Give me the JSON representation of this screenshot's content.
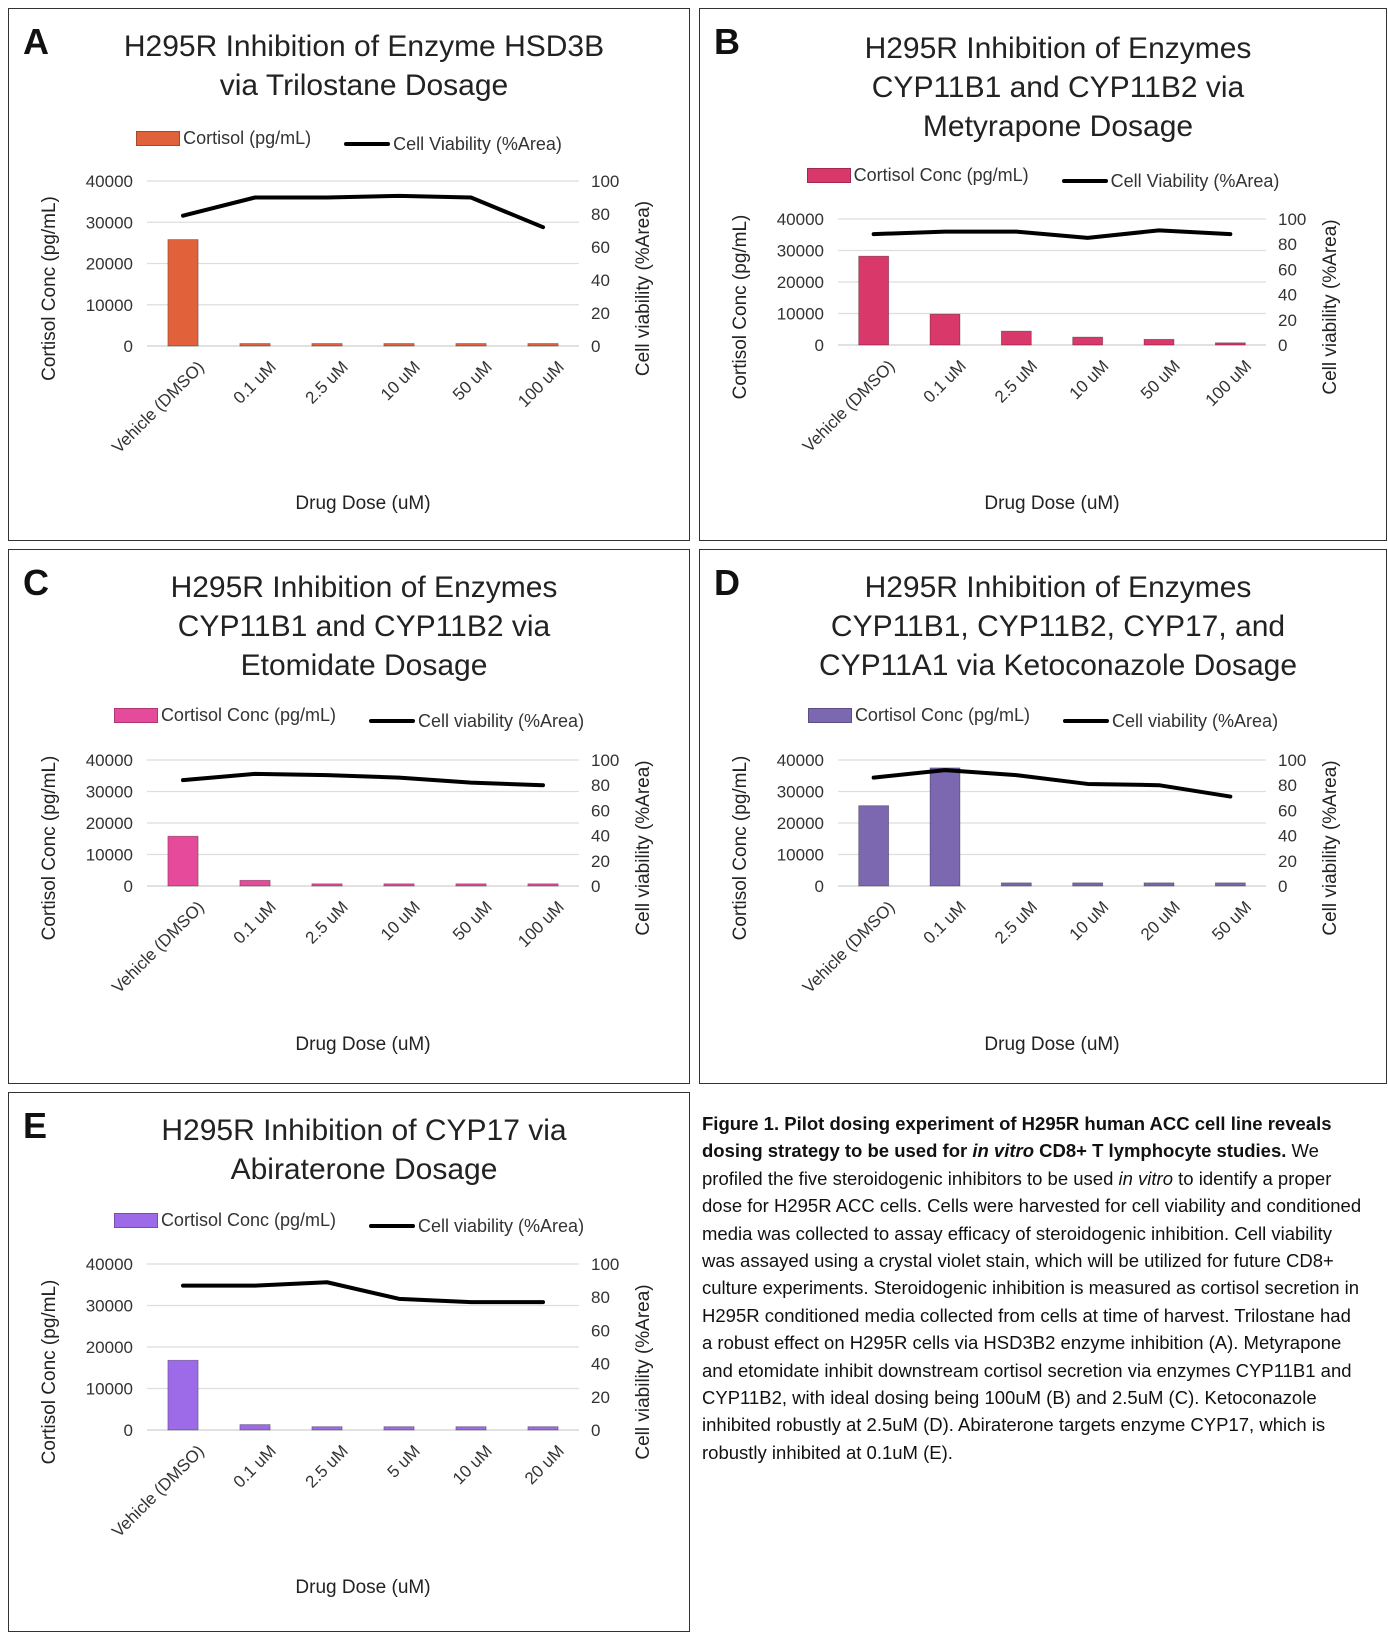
{
  "colors": {
    "A": "#e0613a",
    "B": "#d9386a",
    "C": "#e64a9a",
    "D": "#7c68b1",
    "E": "#9d6ae8",
    "line": "#000000"
  },
  "common": {
    "xlabel": "Drug Dose (uM)",
    "ylabel_left": "Cortisol Conc (pg/mL)"
  },
  "chart_data": [
    {
      "id": "A",
      "type": "bar+line",
      "title": "H295R Inhibition of Enzyme HSD3B via Trilostane Dosage",
      "title_lines": [
        "H295R Inhibition of Enzyme HSD3B",
        "via Trilostane Dosage"
      ],
      "legend": [
        "Cortisol (pg/mL)",
        "Cell Viability (%Area)"
      ],
      "categories": [
        "Vehicle (DMSO)",
        "0.1 uM",
        "2.5 uM",
        "10 uM",
        "50 uM",
        "100 uM"
      ],
      "series": [
        {
          "name": "Cortisol (pg/mL)",
          "kind": "bar",
          "axis": "left",
          "values": [
            25800,
            600,
            600,
            600,
            600,
            600
          ]
        },
        {
          "name": "Cell Viability (%Area)",
          "kind": "line",
          "axis": "right",
          "values": [
            79,
            90,
            90,
            91,
            90,
            72
          ]
        }
      ],
      "xlabel": "Drug Dose (uM)",
      "ylabel": "Cortisol Conc (pg/mL)",
      "y2label": "Cell viability (%Area)",
      "ylim": [
        0,
        40000
      ],
      "yticks": [
        "0",
        "10000",
        "20000",
        "30000",
        "40000"
      ],
      "y2lim": [
        0,
        100
      ],
      "y2ticks": [
        "0",
        "20",
        "40",
        "60",
        "80",
        "100"
      ]
    },
    {
      "id": "B",
      "type": "bar+line",
      "title": "H295R Inhibition of Enzymes CYP11B1 and CYP11B2 via Metyrapone Dosage",
      "title_lines": [
        "H295R Inhibition of Enzymes",
        "CYP11B1 and CYP11B2 via",
        "Metyrapone Dosage"
      ],
      "legend": [
        "Cortisol Conc (pg/mL)",
        "Cell Viability (%Area)"
      ],
      "categories": [
        "Vehicle (DMSO)",
        "0.1 uM",
        "2.5 uM",
        "10 uM",
        "50 uM",
        "100 uM"
      ],
      "series": [
        {
          "name": "Cortisol Conc (pg/mL)",
          "kind": "bar",
          "axis": "left",
          "values": [
            28200,
            9800,
            4400,
            2500,
            1800,
            700
          ]
        },
        {
          "name": "Cell Viability (%Area)",
          "kind": "line",
          "axis": "right",
          "values": [
            88,
            90,
            90,
            85,
            91,
            88
          ]
        }
      ],
      "xlabel": "Drug Dose (uM)",
      "ylabel": "Cortisol Conc (pg/mL)",
      "y2label": "Cell viability (%Area)",
      "ylim": [
        0,
        40000
      ],
      "yticks": [
        "0",
        "10000",
        "20000",
        "30000",
        "40000"
      ],
      "y2lim": [
        0,
        100
      ],
      "y2ticks": [
        "0",
        "20",
        "40",
        "60",
        "80",
        "100"
      ]
    },
    {
      "id": "C",
      "type": "bar+line",
      "title": "H295R Inhibition of Enzymes CYP11B1 and CYP11B2 via Etomidate Dosage",
      "title_lines": [
        "H295R Inhibition of Enzymes",
        "CYP11B1 and CYP11B2 via",
        "Etomidate Dosage"
      ],
      "legend": [
        "Cortisol Conc (pg/mL)",
        "Cell viability (%Area)"
      ],
      "categories": [
        "Vehicle (DMSO)",
        "0.1 uM",
        "2.5 uM",
        "10 uM",
        "50 uM",
        "100 uM"
      ],
      "series": [
        {
          "name": "Cortisol Conc (pg/mL)",
          "kind": "bar",
          "axis": "left",
          "values": [
            15800,
            1800,
            700,
            700,
            700,
            700
          ]
        },
        {
          "name": "Cell viability (%Area)",
          "kind": "line",
          "axis": "right",
          "values": [
            84,
            89,
            88,
            86,
            82,
            80
          ]
        }
      ],
      "xlabel": "Drug Dose (uM)",
      "ylabel": "Cortisol Conc (pg/mL)",
      "y2label": "Cell viability (%Area)",
      "ylim": [
        0,
        40000
      ],
      "yticks": [
        "0",
        "10000",
        "20000",
        "30000",
        "40000"
      ],
      "y2lim": [
        0,
        100
      ],
      "y2ticks": [
        "0",
        "20",
        "40",
        "60",
        "80",
        "100"
      ]
    },
    {
      "id": "D",
      "type": "bar+line",
      "title": "H295R Inhibition of Enzymes CYP11B1, CYP11B2, CYP17, and CYP11A1 via Ketoconazole Dosage",
      "title_lines": [
        "H295R Inhibition of Enzymes",
        "CYP11B1, CYP11B2, CYP17, and",
        "CYP11A1 via Ketoconazole Dosage"
      ],
      "legend": [
        "Cortisol Conc (pg/mL)",
        "Cell viability (%Area)"
      ],
      "categories": [
        "Vehicle (DMSO)",
        "0.1 uM",
        "2.5 uM",
        "10 uM",
        "20 uM",
        "50 uM"
      ],
      "series": [
        {
          "name": "Cortisol Conc (pg/mL)",
          "kind": "bar",
          "axis": "left",
          "values": [
            25500,
            37500,
            1000,
            1000,
            1000,
            1000
          ]
        },
        {
          "name": "Cell viability (%Area)",
          "kind": "line",
          "axis": "right",
          "values": [
            86,
            92,
            88,
            81,
            80,
            71
          ]
        }
      ],
      "xlabel": "Drug Dose (uM)",
      "ylabel": "Cortisol Conc (pg/mL)",
      "y2label": "Cell viability (%Area)",
      "ylim": [
        0,
        40000
      ],
      "yticks": [
        "0",
        "10000",
        "20000",
        "30000",
        "40000"
      ],
      "y2lim": [
        0,
        100
      ],
      "y2ticks": [
        "0",
        "20",
        "40",
        "60",
        "80",
        "100"
      ]
    },
    {
      "id": "E",
      "type": "bar+line",
      "title": "H295R Inhibition of CYP17 via Abiraterone Dosage",
      "title_lines": [
        "H295R Inhibition of CYP17 via",
        "Abiraterone Dosage"
      ],
      "legend": [
        "Cortisol Conc (pg/mL)",
        "Cell viability (%Area)"
      ],
      "categories": [
        "Vehicle (DMSO)",
        "0.1 uM",
        "2.5 uM",
        "5 uM",
        "10 uM",
        "20 uM"
      ],
      "series": [
        {
          "name": "Cortisol Conc (pg/mL)",
          "kind": "bar",
          "axis": "left",
          "values": [
            16800,
            1300,
            800,
            800,
            800,
            800
          ]
        },
        {
          "name": "Cell viability (%Area)",
          "kind": "line",
          "axis": "right",
          "values": [
            87,
            87,
            89,
            79,
            77,
            77
          ]
        }
      ],
      "xlabel": "Drug Dose (uM)",
      "ylabel": "Cortisol Conc (pg/mL)",
      "y2label": "Cell viability (%Area)",
      "ylim": [
        0,
        40000
      ],
      "yticks": [
        "0",
        "10000",
        "20000",
        "30000",
        "40000"
      ],
      "y2lim": [
        0,
        100
      ],
      "y2ticks": [
        "0",
        "20",
        "40",
        "60",
        "80",
        "100"
      ]
    }
  ],
  "caption": {
    "lead_bold_1": "Figure 1. Pilot dosing experiment of H295R human ACC cell line reveals dosing strategy to be used for ",
    "lead_bold_italic": "in vitro",
    "lead_bold_2": " CD8+ T lymphocyte studies.",
    "body_1": " We profiled the five steroidogenic inhibitors to be used ",
    "body_italic": "in vitro",
    "body_2": " to identify a proper dose for H295R ACC cells. Cells were harvested for cell viability and conditioned media was collected to assay efficacy of steroidogenic inhibition. Cell viability was assayed using a crystal violet stain, which will be utilized for future CD8+ culture experiments. Steroidogenic inhibition is measured as cortisol secretion in H295R conditioned media collected from cells at time of harvest. Trilostane had a robust effect on H295R cells via HSD3B2 enzyme inhibition (A). Metyrapone and etomidate inhibit downstream cortisol secretion via enzymes CYP11B1 and CYP11B2, with ideal dosing being 100uM (B) and 2.5uM (C). Ketoconazole inhibited robustly at 2.5uM (D). Abiraterone targets enzyme CYP17, which is robustly inhibited at 0.1uM (E)."
  }
}
